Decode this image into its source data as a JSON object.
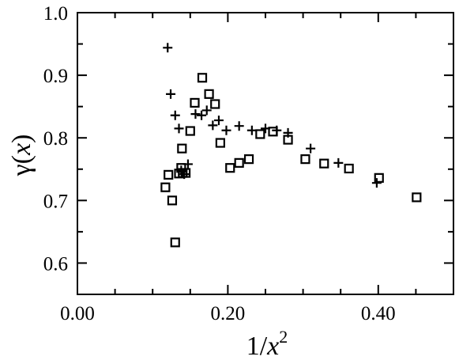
{
  "chart_data": {
    "type": "scatter",
    "xlabel": {
      "base": "1/",
      "var": "x",
      "sup": "2"
    },
    "ylabel": {
      "fn": "γ(",
      "var": "x",
      "close": ")"
    },
    "xlim": [
      0.0,
      0.5
    ],
    "ylim": [
      0.55,
      1.0
    ],
    "xticks": [
      {
        "value": 0.0,
        "label": "0.00"
      },
      {
        "value": 0.2,
        "label": "0.20"
      },
      {
        "value": 0.4,
        "label": "0.40"
      }
    ],
    "yticks": [
      {
        "value": 0.6,
        "label": "0.6"
      },
      {
        "value": 0.7,
        "label": "0.7"
      },
      {
        "value": 0.8,
        "label": "0.8"
      },
      {
        "value": 0.9,
        "label": "0.9"
      },
      {
        "value": 1.0,
        "label": "1.0"
      }
    ],
    "grid": false,
    "series": [
      {
        "marker": "plus",
        "points": [
          [
            0.12,
            0.944
          ],
          [
            0.124,
            0.87
          ],
          [
            0.13,
            0.836
          ],
          [
            0.135,
            0.815
          ],
          [
            0.138,
            0.748
          ],
          [
            0.142,
            0.742
          ],
          [
            0.147,
            0.758
          ],
          [
            0.157,
            0.838
          ],
          [
            0.165,
            0.836
          ],
          [
            0.172,
            0.844
          ],
          [
            0.18,
            0.82
          ],
          [
            0.188,
            0.828
          ],
          [
            0.198,
            0.812
          ],
          [
            0.215,
            0.819
          ],
          [
            0.232,
            0.812
          ],
          [
            0.25,
            0.815
          ],
          [
            0.265,
            0.812
          ],
          [
            0.28,
            0.808
          ],
          [
            0.31,
            0.783
          ],
          [
            0.347,
            0.76
          ],
          [
            0.398,
            0.728
          ]
        ]
      },
      {
        "marker": "square",
        "points": [
          [
            0.117,
            0.721
          ],
          [
            0.121,
            0.741
          ],
          [
            0.126,
            0.7
          ],
          [
            0.13,
            0.633
          ],
          [
            0.135,
            0.743
          ],
          [
            0.138,
            0.752
          ],
          [
            0.139,
            0.783
          ],
          [
            0.14,
            0.744
          ],
          [
            0.144,
            0.744
          ],
          [
            0.15,
            0.811
          ],
          [
            0.156,
            0.856
          ],
          [
            0.166,
            0.896
          ],
          [
            0.175,
            0.87
          ],
          [
            0.183,
            0.854
          ],
          [
            0.19,
            0.792
          ],
          [
            0.203,
            0.752
          ],
          [
            0.215,
            0.76
          ],
          [
            0.228,
            0.766
          ],
          [
            0.243,
            0.806
          ],
          [
            0.26,
            0.81
          ],
          [
            0.28,
            0.797
          ],
          [
            0.303,
            0.766
          ],
          [
            0.328,
            0.759
          ],
          [
            0.361,
            0.751
          ],
          [
            0.401,
            0.736
          ],
          [
            0.451,
            0.705
          ]
        ]
      }
    ]
  }
}
